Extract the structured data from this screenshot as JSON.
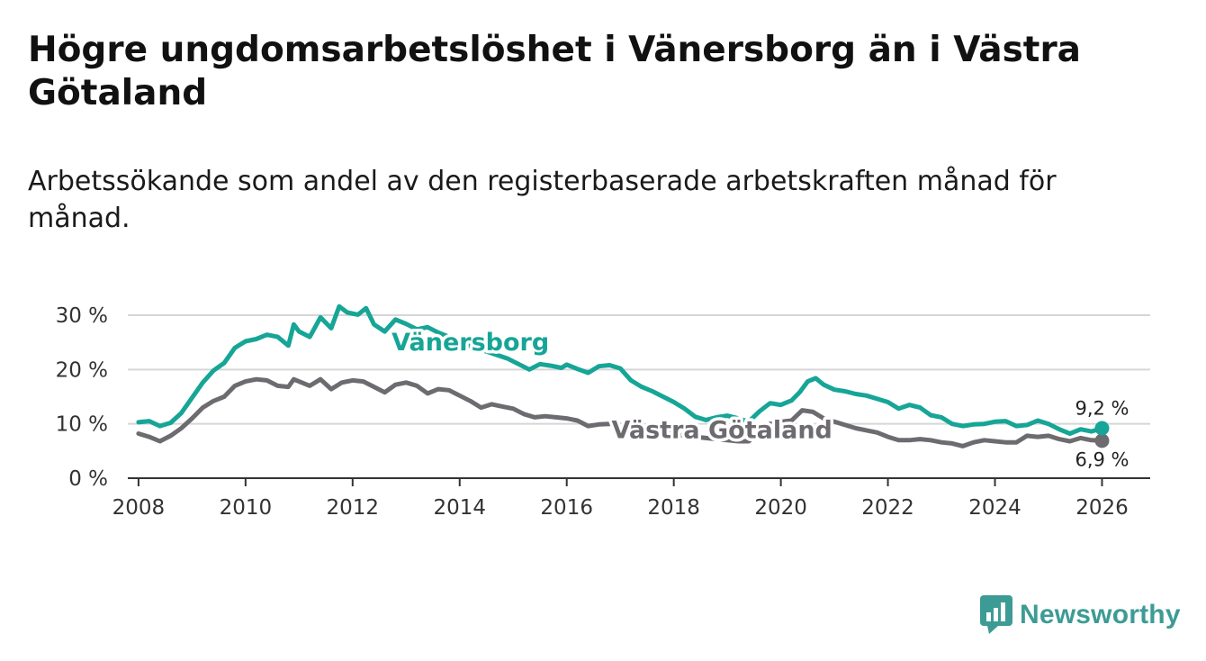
{
  "title": "Högre ungdomsarbetslöshet i Vänersborg än i Västra Götaland",
  "subtitle": "Arbetssökande som andel av den registerbaserade arbetskraften månad för månad.",
  "logo": {
    "text": "Newsworthy",
    "icon": "bar-chart-bubble-icon",
    "color": "#3d9b95"
  },
  "chart_data": {
    "type": "line",
    "title": "Högre ungdomsarbetslöshet i Vänersborg än i Västra Götaland",
    "xlabel": "",
    "ylabel": "",
    "xlim": [
      2007.8,
      2026.9
    ],
    "ylim": [
      0,
      30
    ],
    "x_ticks": [
      2008,
      2010,
      2012,
      2014,
      2016,
      2018,
      2020,
      2022,
      2024,
      2026
    ],
    "x_tick_labels": [
      "2008",
      "2010",
      "2012",
      "2014",
      "2016",
      "2018",
      "2020",
      "2022",
      "2024",
      "2026"
    ],
    "y_ticks": [
      0,
      10,
      20,
      30
    ],
    "y_tick_labels": [
      "0 %",
      "10 %",
      "20 %",
      "30 %"
    ],
    "grid": true,
    "series": [
      {
        "name": "Vänersborg",
        "color": "#16a596",
        "points": [
          [
            2008.0,
            10.3
          ],
          [
            2008.2,
            10.5
          ],
          [
            2008.4,
            9.6
          ],
          [
            2008.6,
            10.2
          ],
          [
            2008.8,
            12.0
          ],
          [
            2009.0,
            14.8
          ],
          [
            2009.2,
            17.6
          ],
          [
            2009.4,
            19.8
          ],
          [
            2009.6,
            21.2
          ],
          [
            2009.8,
            24.0
          ],
          [
            2010.0,
            25.2
          ],
          [
            2010.2,
            25.6
          ],
          [
            2010.4,
            26.4
          ],
          [
            2010.6,
            26.0
          ],
          [
            2010.8,
            24.4
          ],
          [
            2010.9,
            28.3
          ],
          [
            2011.0,
            27.0
          ],
          [
            2011.2,
            26.0
          ],
          [
            2011.4,
            29.6
          ],
          [
            2011.6,
            27.6
          ],
          [
            2011.75,
            31.6
          ],
          [
            2011.9,
            30.5
          ],
          [
            2012.1,
            30.1
          ],
          [
            2012.25,
            31.3
          ],
          [
            2012.4,
            28.3
          ],
          [
            2012.6,
            27.0
          ],
          [
            2012.8,
            29.2
          ],
          [
            2013.0,
            28.4
          ],
          [
            2013.2,
            27.4
          ],
          [
            2013.4,
            27.8
          ],
          [
            2013.6,
            26.8
          ],
          [
            2013.8,
            26.0
          ],
          [
            2014.0,
            25.0
          ],
          [
            2014.3,
            24.0
          ],
          [
            2014.6,
            23.0
          ],
          [
            2014.9,
            22.0
          ],
          [
            2015.1,
            21.0
          ],
          [
            2015.3,
            20.0
          ],
          [
            2015.5,
            21.0
          ],
          [
            2015.7,
            20.7
          ],
          [
            2015.9,
            20.3
          ],
          [
            2016.0,
            20.9
          ],
          [
            2016.2,
            20.1
          ],
          [
            2016.4,
            19.4
          ],
          [
            2016.6,
            20.6
          ],
          [
            2016.8,
            20.8
          ],
          [
            2017.0,
            20.2
          ],
          [
            2017.2,
            18.0
          ],
          [
            2017.4,
            16.8
          ],
          [
            2017.6,
            16.0
          ],
          [
            2017.8,
            15.0
          ],
          [
            2018.0,
            14.0
          ],
          [
            2018.2,
            12.8
          ],
          [
            2018.4,
            11.3
          ],
          [
            2018.6,
            10.7
          ],
          [
            2018.8,
            11.2
          ],
          [
            2019.0,
            11.5
          ],
          [
            2019.2,
            11.0
          ],
          [
            2019.4,
            10.4
          ],
          [
            2019.6,
            12.3
          ],
          [
            2019.8,
            13.8
          ],
          [
            2020.0,
            13.5
          ],
          [
            2020.2,
            14.3
          ],
          [
            2020.35,
            15.8
          ],
          [
            2020.5,
            17.8
          ],
          [
            2020.65,
            18.4
          ],
          [
            2020.8,
            17.2
          ],
          [
            2021.0,
            16.3
          ],
          [
            2021.2,
            16.0
          ],
          [
            2021.4,
            15.5
          ],
          [
            2021.6,
            15.2
          ],
          [
            2021.8,
            14.6
          ],
          [
            2022.0,
            14.0
          ],
          [
            2022.2,
            12.8
          ],
          [
            2022.4,
            13.5
          ],
          [
            2022.6,
            13.0
          ],
          [
            2022.8,
            11.6
          ],
          [
            2023.0,
            11.2
          ],
          [
            2023.2,
            10.0
          ],
          [
            2023.4,
            9.6
          ],
          [
            2023.6,
            9.9
          ],
          [
            2023.8,
            10.0
          ],
          [
            2024.0,
            10.4
          ],
          [
            2024.2,
            10.5
          ],
          [
            2024.4,
            9.6
          ],
          [
            2024.6,
            9.8
          ],
          [
            2024.8,
            10.6
          ],
          [
            2025.0,
            10.0
          ],
          [
            2025.2,
            9.0
          ],
          [
            2025.4,
            8.2
          ],
          [
            2025.6,
            9.0
          ],
          [
            2025.8,
            8.6
          ],
          [
            2026.0,
            9.2
          ]
        ],
        "end_label": "9,2 %"
      },
      {
        "name": "Västra Götaland",
        "color": "#6e6b70",
        "points": [
          [
            2008.0,
            8.2
          ],
          [
            2008.2,
            7.6
          ],
          [
            2008.4,
            6.8
          ],
          [
            2008.6,
            7.8
          ],
          [
            2008.8,
            9.2
          ],
          [
            2009.0,
            11.0
          ],
          [
            2009.2,
            13.0
          ],
          [
            2009.4,
            14.2
          ],
          [
            2009.6,
            15.0
          ],
          [
            2009.8,
            17.0
          ],
          [
            2010.0,
            17.8
          ],
          [
            2010.2,
            18.2
          ],
          [
            2010.4,
            18.0
          ],
          [
            2010.6,
            17.0
          ],
          [
            2010.8,
            16.8
          ],
          [
            2010.9,
            18.2
          ],
          [
            2011.2,
            17.0
          ],
          [
            2011.4,
            18.2
          ],
          [
            2011.6,
            16.4
          ],
          [
            2011.8,
            17.6
          ],
          [
            2012.0,
            18.0
          ],
          [
            2012.2,
            17.8
          ],
          [
            2012.4,
            16.8
          ],
          [
            2012.6,
            15.8
          ],
          [
            2012.8,
            17.2
          ],
          [
            2013.0,
            17.6
          ],
          [
            2013.2,
            17.0
          ],
          [
            2013.4,
            15.6
          ],
          [
            2013.6,
            16.4
          ],
          [
            2013.8,
            16.2
          ],
          [
            2014.0,
            15.2
          ],
          [
            2014.2,
            14.2
          ],
          [
            2014.4,
            13.0
          ],
          [
            2014.6,
            13.6
          ],
          [
            2014.8,
            13.2
          ],
          [
            2015.0,
            12.8
          ],
          [
            2015.2,
            11.8
          ],
          [
            2015.4,
            11.2
          ],
          [
            2015.6,
            11.4
          ],
          [
            2015.8,
            11.2
          ],
          [
            2016.0,
            11.0
          ],
          [
            2016.2,
            10.6
          ],
          [
            2016.4,
            9.6
          ],
          [
            2016.6,
            9.9
          ],
          [
            2016.8,
            10.0
          ],
          [
            2017.0,
            9.8
          ],
          [
            2017.2,
            9.4
          ],
          [
            2017.4,
            8.6
          ],
          [
            2017.6,
            8.0
          ],
          [
            2017.8,
            8.4
          ],
          [
            2018.0,
            8.1
          ],
          [
            2018.2,
            7.8
          ],
          [
            2018.4,
            7.6
          ],
          [
            2018.6,
            7.4
          ],
          [
            2018.8,
            7.2
          ],
          [
            2019.0,
            7.0
          ],
          [
            2019.2,
            6.8
          ],
          [
            2019.4,
            6.8
          ],
          [
            2019.6,
            8.6
          ],
          [
            2019.8,
            10.0
          ],
          [
            2020.0,
            10.4
          ],
          [
            2020.2,
            10.6
          ],
          [
            2020.4,
            12.5
          ],
          [
            2020.6,
            12.2
          ],
          [
            2020.8,
            11.0
          ],
          [
            2021.0,
            10.4
          ],
          [
            2021.2,
            9.8
          ],
          [
            2021.4,
            9.2
          ],
          [
            2021.6,
            8.8
          ],
          [
            2021.8,
            8.4
          ],
          [
            2022.0,
            7.6
          ],
          [
            2022.2,
            7.0
          ],
          [
            2022.4,
            7.0
          ],
          [
            2022.6,
            7.2
          ],
          [
            2022.8,
            7.0
          ],
          [
            2023.0,
            6.6
          ],
          [
            2023.2,
            6.4
          ],
          [
            2023.4,
            5.9
          ],
          [
            2023.6,
            6.6
          ],
          [
            2023.8,
            7.0
          ],
          [
            2024.0,
            6.8
          ],
          [
            2024.2,
            6.6
          ],
          [
            2024.4,
            6.6
          ],
          [
            2024.6,
            7.8
          ],
          [
            2024.8,
            7.6
          ],
          [
            2025.0,
            7.8
          ],
          [
            2025.2,
            7.2
          ],
          [
            2025.4,
            6.8
          ],
          [
            2025.6,
            7.4
          ],
          [
            2025.8,
            7.0
          ],
          [
            2026.0,
            6.9
          ]
        ],
        "end_label": "6,9 %"
      }
    ]
  }
}
